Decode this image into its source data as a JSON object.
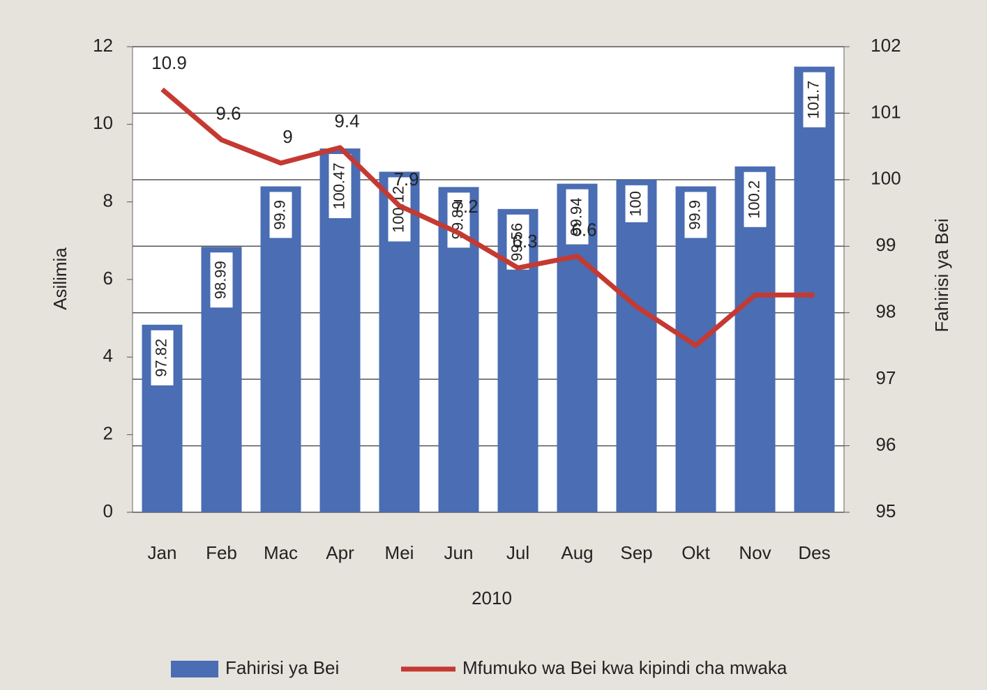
{
  "chart_data": {
    "type": "bar_line",
    "categories": [
      "Jan",
      "Feb",
      "Mac",
      "Apr",
      "Mei",
      "Jun",
      "Jul",
      "Aug",
      "Sep",
      "Okt",
      "Nov",
      "Des"
    ],
    "x_label": "2010",
    "y_label": "Asilimia",
    "y2_label": "Fahirisi ya Bei",
    "ylim": [
      0,
      12
    ],
    "yticks": [
      0,
      2,
      4,
      6,
      8,
      10,
      12
    ],
    "y2lim": [
      95,
      102
    ],
    "y2ticks": [
      95,
      96,
      97,
      98,
      99,
      100,
      101,
      102
    ],
    "grid": true,
    "series": [
      {
        "name": "Fahirisi ya Bei",
        "type": "bar",
        "axis": "y2",
        "color": "#4a6db3",
        "values": [
          97.82,
          98.99,
          99.9,
          100.47,
          100.12,
          99.89,
          99.56,
          99.94,
          100,
          99.9,
          100.2,
          101.7
        ]
      },
      {
        "name": "Mfumuko wa Bei kwa kipindi cha mwaka",
        "type": "line",
        "color": "#c43a32",
        "values": [
          10.9,
          9.6,
          9,
          9.4,
          7.9,
          7.2,
          6.3,
          6.6,
          5.3,
          4.3,
          5.6,
          5.6
        ],
        "labeled": [
          true,
          true,
          true,
          true,
          true,
          true,
          true,
          true,
          false,
          false,
          false,
          false
        ]
      }
    ],
    "legend": "bottom"
  }
}
